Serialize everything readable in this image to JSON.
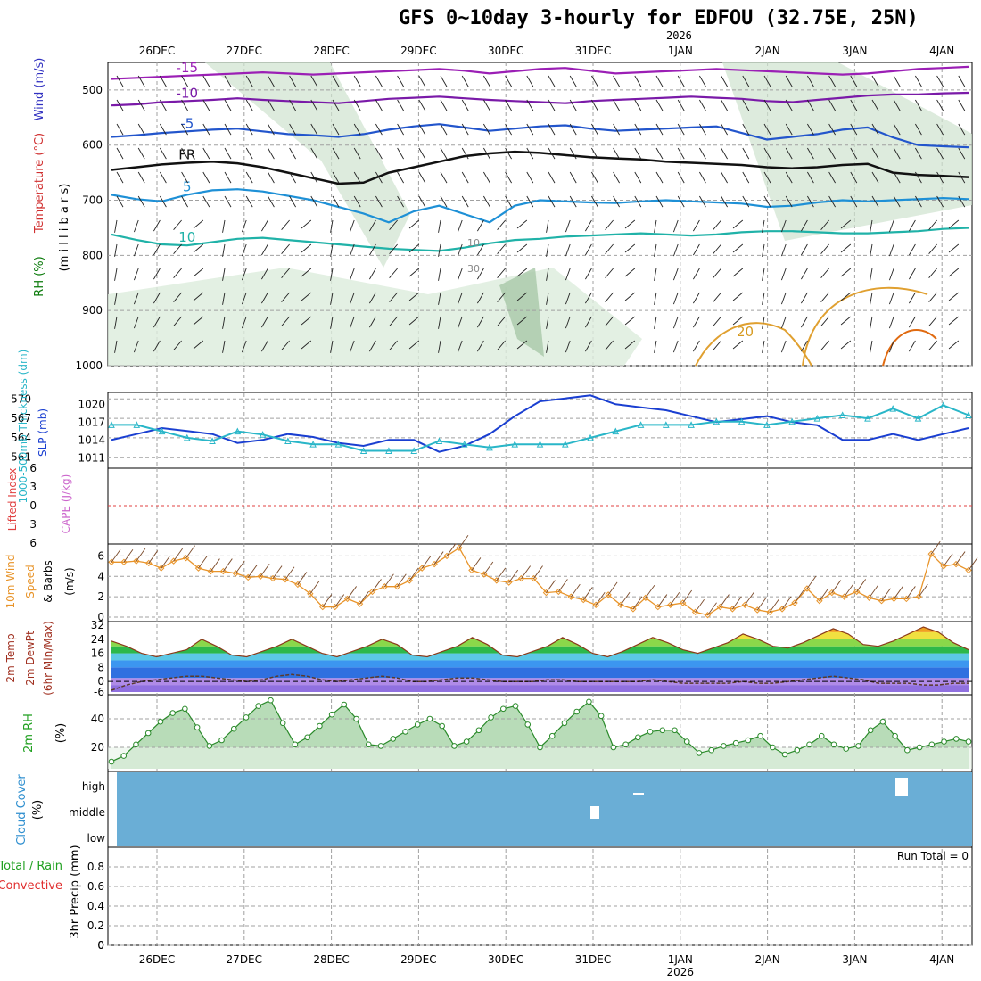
{
  "header": {
    "title": "GFS 0~10day 3-hourly for EDFOU (32.75E, 25N)",
    "year": "2026"
  },
  "colors": {
    "grid": "#a0a0a0",
    "cloud_fill": "#6aaed6",
    "rh_green": "#2ecc40",
    "slp": "#1a3fd1",
    "thickness": "#29b6c8",
    "wind": "#e8942a",
    "temp_hot": "#e07b1a",
    "lifted": "#e04040",
    "cape": "#cc66cc"
  },
  "x_axis": {
    "date_labels": [
      "26DEC",
      "27DEC",
      "28DEC",
      "29DEC",
      "30DEC",
      "31DEC",
      "1JAN",
      "2JAN",
      "3JAN",
      "4JAN"
    ]
  },
  "chart_data": [
    {
      "type": "contour",
      "panel": "upper-air",
      "ylabel_parts": [
        "RH (%)",
        "Temperature (°C)",
        "Wind (m/s)"
      ],
      "ylabel_unit": "(m i l l i b a r s)",
      "y_ticks": [
        500,
        600,
        700,
        800,
        900,
        1000
      ],
      "ylim": [
        450,
        1000
      ],
      "temperature_labels": [
        "-15",
        "-10",
        "-5",
        "FR",
        "5",
        "10",
        "20"
      ],
      "rh_labels": [
        "10",
        "30"
      ],
      "isotherms": [
        {
          "label": "-15",
          "color": "#9b1fb5",
          "p": [
            480,
            478,
            476,
            474,
            472,
            470,
            468,
            470,
            472,
            470,
            468,
            466,
            464,
            462,
            465,
            470,
            466,
            462,
            460,
            465,
            470,
            468,
            466,
            464,
            462,
            464,
            466,
            468,
            470,
            472,
            470,
            466,
            462,
            460,
            458
          ]
        },
        {
          "label": "-10",
          "color": "#7a1aa8",
          "p": [
            528,
            526,
            522,
            520,
            518,
            515,
            518,
            520,
            522,
            524,
            520,
            516,
            514,
            512,
            515,
            518,
            520,
            522,
            524,
            520,
            518,
            516,
            514,
            512,
            514,
            516,
            520,
            522,
            518,
            514,
            510,
            508,
            508,
            506,
            505
          ]
        },
        {
          "label": "-5",
          "color": "#2255cc",
          "p": [
            585,
            582,
            578,
            575,
            572,
            570,
            575,
            580,
            582,
            585,
            580,
            572,
            566,
            562,
            568,
            574,
            570,
            566,
            564,
            570,
            574,
            572,
            570,
            568,
            566,
            578,
            590,
            585,
            580,
            572,
            568,
            586,
            600,
            602,
            604
          ]
        },
        {
          "label": "FR",
          "color": "#111111",
          "p": [
            645,
            640,
            635,
            632,
            630,
            633,
            640,
            650,
            660,
            670,
            668,
            650,
            640,
            630,
            620,
            615,
            612,
            614,
            618,
            622,
            624,
            626,
            630,
            632,
            634,
            636,
            640,
            642,
            640,
            636,
            634,
            650,
            654,
            656,
            658
          ]
        },
        {
          "label": "5",
          "color": "#1e90d6",
          "p": [
            690,
            698,
            702,
            690,
            682,
            680,
            684,
            692,
            700,
            712,
            724,
            740,
            720,
            710,
            725,
            740,
            710,
            700,
            702,
            704,
            705,
            702,
            700,
            702,
            704,
            706,
            712,
            710,
            704,
            700,
            702,
            700,
            698,
            696,
            698
          ]
        },
        {
          "label": "10",
          "color": "#20b2a8",
          "p": [
            762,
            772,
            780,
            782,
            776,
            770,
            768,
            772,
            776,
            780,
            784,
            788,
            790,
            792,
            786,
            778,
            772,
            770,
            766,
            764,
            762,
            760,
            762,
            764,
            762,
            758,
            756,
            756,
            758,
            760,
            760,
            758,
            756,
            752,
            750
          ]
        }
      ]
    },
    {
      "type": "line",
      "panel": "slp-thickness",
      "ylabel": "SLP (mb)",
      "ylabel2": "1000-500mb Thickness (dm)",
      "y_ticks_left": [
        561,
        564,
        567,
        570
      ],
      "y_ticks_right": [
        1011,
        1014,
        1017,
        1020
      ],
      "series": [
        {
          "name": "SLP",
          "axis": "right",
          "values": [
            1014,
            1015,
            1016,
            1015.5,
            1015,
            1013.5,
            1014,
            1015,
            1014.5,
            1013.5,
            1013,
            1014,
            1014,
            1012,
            1013,
            1015,
            1018,
            1020.5,
            1021,
            1021.5,
            1020,
            1019.5,
            1019,
            1018,
            1017,
            1017.5,
            1018,
            1017,
            1016.5,
            1014,
            1014,
            1015,
            1014,
            1015,
            1016
          ]
        },
        {
          "name": "Thickness",
          "axis": "left",
          "values": [
            566,
            566,
            565,
            564,
            563.5,
            565,
            564.5,
            563.5,
            563,
            563,
            562,
            562,
            562,
            563.5,
            563,
            562.5,
            563,
            563,
            563,
            564,
            565,
            566,
            566,
            566,
            566.5,
            566.5,
            566,
            566.5,
            567,
            567.5,
            567,
            568.5,
            567,
            569,
            567.5
          ]
        }
      ]
    },
    {
      "type": "line",
      "panel": "stability",
      "ylabel": "Lifted Index",
      "ylabel2": "CAPE (J/kg)",
      "y_ticks": [
        "6",
        "3",
        "0",
        "3",
        "6"
      ],
      "series": [
        {
          "name": "Lifted Index",
          "values": []
        },
        {
          "name": "CAPE",
          "values": []
        }
      ]
    },
    {
      "type": "line",
      "panel": "wind-10m",
      "ylabel_parts": [
        "10m Wind",
        "Speed",
        "& Barbs"
      ],
      "ylabel_unit": "(m/s)",
      "y_ticks": [
        0,
        2,
        4,
        6
      ],
      "ylim": [
        0,
        7
      ],
      "series": [
        {
          "name": "Speed",
          "values": [
            5.4,
            5.4,
            5.5,
            5.3,
            4.8,
            5.5,
            5.8,
            4.8,
            4.5,
            4.5,
            4.3,
            3.9,
            4.0,
            3.8,
            3.7,
            3.2,
            2.3,
            1.0,
            1.0,
            1.8,
            1.3,
            2.5,
            3.0,
            3.0,
            3.6,
            4.8,
            5.2,
            6.0,
            6.8,
            4.6,
            4.2,
            3.6,
            3.4,
            3.8,
            3.8,
            2.4,
            2.5,
            2.0,
            1.7,
            1.2,
            2.2,
            1.2,
            0.8,
            1.9,
            1.0,
            1.2,
            1.4,
            0.5,
            0.2,
            1.0,
            0.8,
            1.2,
            0.7,
            0.5,
            0.8,
            1.4,
            2.8,
            1.6,
            2.4,
            2.0,
            2.5,
            1.9,
            1.6,
            1.8,
            1.8,
            2.0,
            6.2,
            5.0,
            5.2,
            4.6
          ]
        }
      ]
    },
    {
      "type": "area",
      "panel": "temperature-2m",
      "ylabel_parts": [
        "2m Temp",
        "2m DewPt",
        "(6hr Min/Max)"
      ],
      "y_ticks": [
        "32",
        "24",
        "16",
        "8",
        "0",
        "-6"
      ],
      "ylim": [
        -6,
        32
      ],
      "series": [
        {
          "name": "2m Temp",
          "values": [
            23,
            20,
            16,
            14,
            16,
            18,
            24,
            20,
            15,
            14,
            17,
            20,
            24,
            20,
            16,
            14,
            17,
            20,
            24,
            21,
            15,
            14,
            17,
            20,
            25,
            21,
            15,
            14,
            17,
            20,
            25,
            21,
            16,
            14,
            17,
            21,
            25,
            22,
            18,
            16,
            19,
            22,
            27,
            24,
            20,
            19,
            22,
            26,
            30,
            27,
            21,
            20,
            23,
            27,
            31,
            28,
            22,
            18
          ]
        },
        {
          "name": "2m DewPt",
          "values": [
            -5,
            -2,
            0,
            1,
            2,
            3,
            3,
            2,
            1,
            0,
            1,
            3,
            4,
            3,
            1,
            0,
            1,
            2,
            3,
            2,
            0,
            0,
            1,
            2,
            2,
            1,
            0,
            0,
            0,
            1,
            1,
            0,
            0,
            0,
            0,
            0,
            1,
            0,
            -1,
            -1,
            -1,
            -1,
            0,
            -1,
            -1,
            0,
            1,
            2,
            3,
            2,
            1,
            -1,
            -1,
            -1,
            -2,
            -2,
            -1,
            -1
          ]
        }
      ]
    },
    {
      "type": "area",
      "panel": "rh-2m",
      "ylabel": "2m RH",
      "ylabel_unit": "(%)",
      "y_ticks": [
        20,
        40
      ],
      "ylim": [
        5,
        55
      ],
      "series": [
        {
          "name": "2m RH",
          "values": [
            10,
            14,
            22,
            30,
            38,
            44,
            47,
            34,
            21,
            25,
            33,
            41,
            49,
            53,
            37,
            22,
            27,
            35,
            43,
            50,
            40,
            22,
            21,
            26,
            31,
            36,
            40,
            35,
            21,
            24,
            32,
            41,
            47,
            49,
            36,
            20,
            28,
            37,
            45,
            52,
            42,
            20,
            22,
            27,
            31,
            32,
            32,
            24,
            16,
            18,
            21,
            23,
            25,
            28,
            20,
            15,
            18,
            22,
            28,
            22,
            19,
            21,
            32,
            38,
            28,
            18,
            20,
            22,
            24,
            26,
            24
          ]
        }
      ]
    },
    {
      "type": "heatmap",
      "panel": "cloud-cover",
      "ylabel": "Cloud Cover",
      "ylabel_unit": "(%)",
      "y_ticks": [
        "high",
        "middle",
        "low"
      ]
    },
    {
      "type": "bar",
      "panel": "precip",
      "ylabel_parts": [
        "Total / Rain",
        "Convective"
      ],
      "ylabel_unit": "3hr Precip (mm)",
      "y_ticks": [
        0,
        0.2,
        0.4,
        0.6,
        0.8
      ],
      "ylim": [
        0,
        1
      ],
      "run_total": "Run Total = 0",
      "values": []
    }
  ]
}
